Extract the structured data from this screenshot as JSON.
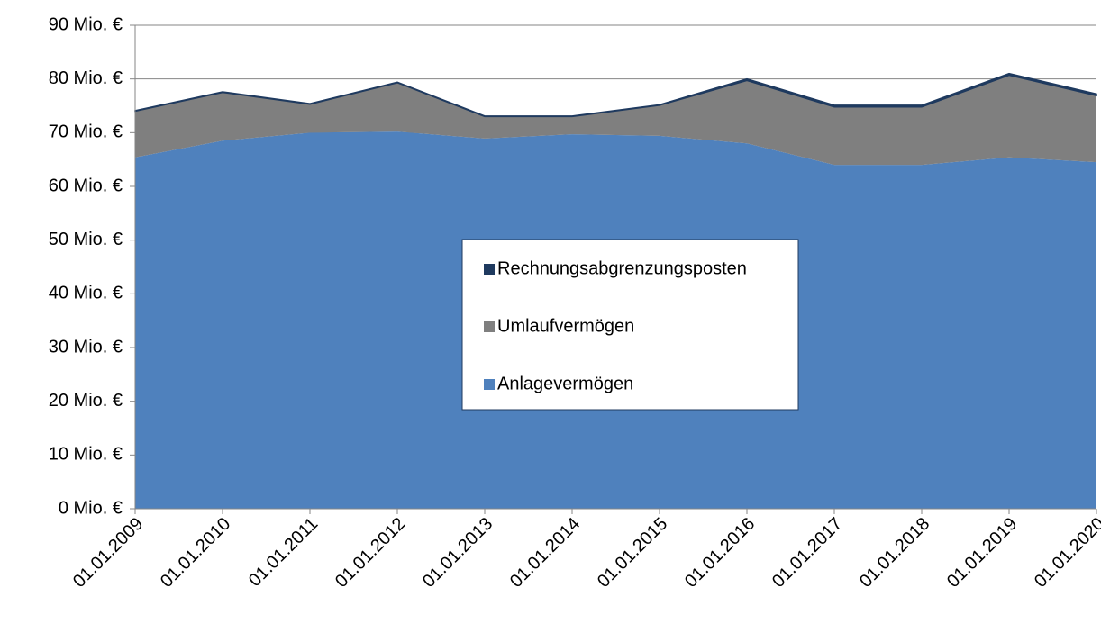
{
  "chart_data": {
    "type": "stacked_area",
    "categories": [
      "01.01.2009",
      "01.01.2010",
      "01.01.2011",
      "01.01.2012",
      "01.01.2013",
      "01.01.2014",
      "01.01.2015",
      "01.01.2016",
      "01.01.2017",
      "01.01.2018",
      "01.01.2019",
      "01.01.2020"
    ],
    "series": [
      {
        "name": "Anlagevermögen",
        "color": "#4f81bd",
        "values": [
          65.4,
          68.5,
          70.0,
          70.2,
          68.9,
          69.7,
          69.4,
          68.0,
          64.0,
          64.0,
          65.4,
          64.5
        ]
      },
      {
        "name": "Umlaufvermögen",
        "color": "#7f7f7f",
        "values": [
          8.6,
          9.0,
          5.3,
          9.1,
          4.1,
          3.3,
          5.7,
          11.7,
          10.8,
          10.8,
          15.3,
          12.4
        ]
      },
      {
        "name": "Rechnungsabgrenzungsposten",
        "color": "#1f3a5f",
        "values": [
          0.1,
          0.1,
          0.1,
          0.1,
          0.1,
          0.1,
          0.1,
          0.3,
          0.3,
          0.3,
          0.3,
          0.3
        ]
      }
    ],
    "ylim": [
      0,
      90
    ],
    "yticks": [
      {
        "value": 0,
        "label": "0 Mio. €"
      },
      {
        "value": 10,
        "label": "10 Mio. €"
      },
      {
        "value": 20,
        "label": "20 Mio. €"
      },
      {
        "value": 30,
        "label": "30 Mio. €"
      },
      {
        "value": 40,
        "label": "40 Mio. €"
      },
      {
        "value": 50,
        "label": "50 Mio. €"
      },
      {
        "value": 60,
        "label": "60 Mio. €"
      },
      {
        "value": 70,
        "label": "70 Mio. €"
      },
      {
        "value": 80,
        "label": "80 Mio. €"
      },
      {
        "value": 90,
        "label": "90 Mio. €"
      }
    ],
    "grid": true,
    "legend": "center"
  }
}
